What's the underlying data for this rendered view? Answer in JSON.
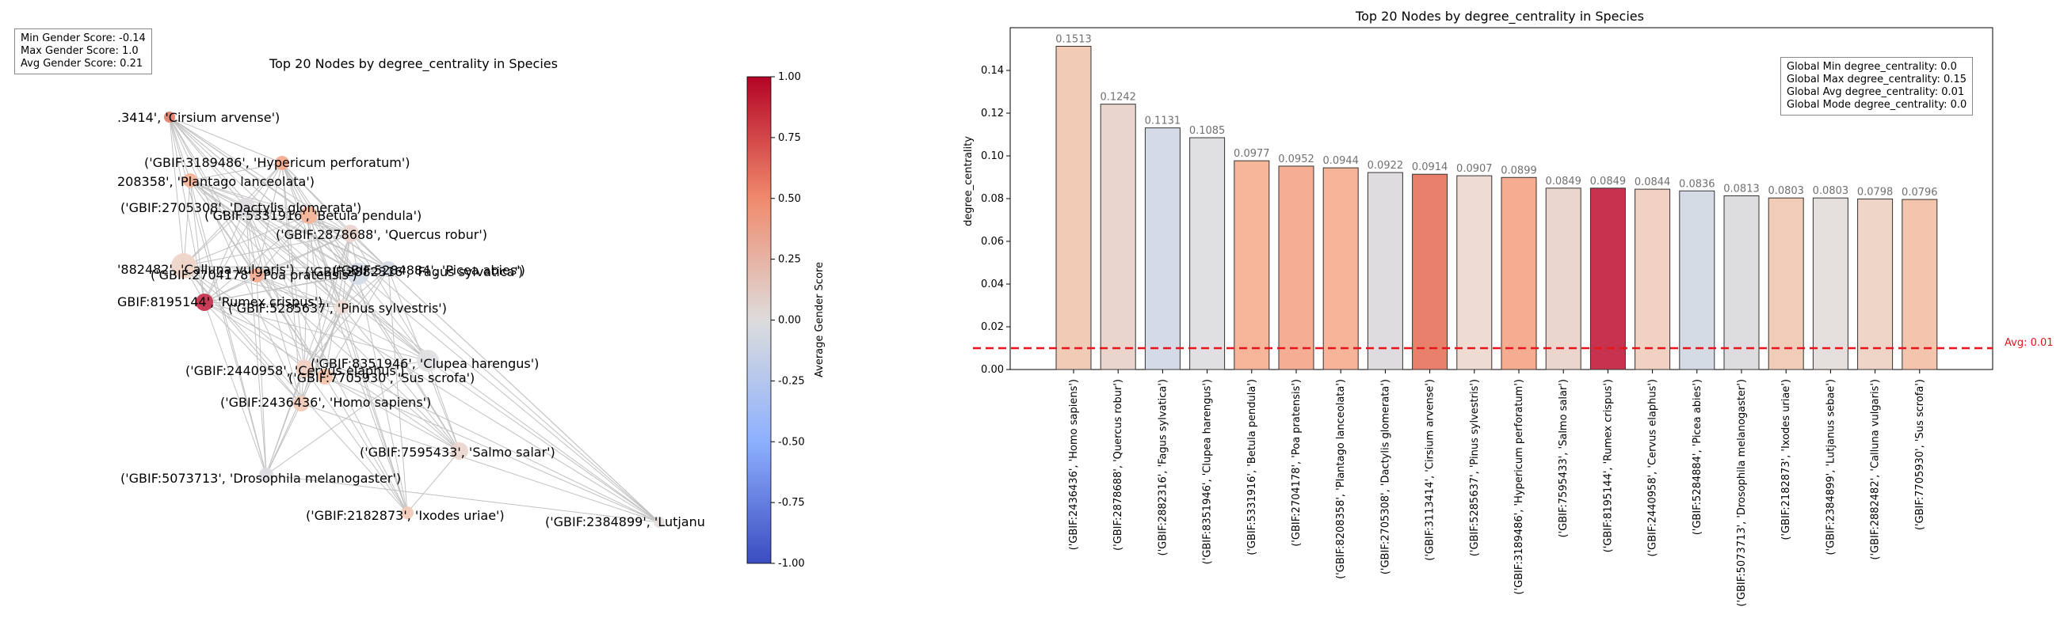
{
  "network": {
    "title": "Top 20 Nodes by degree_centrality in Species",
    "stats": [
      "Min Gender Score: -0.14",
      "Max Gender Score: 1.0",
      "Avg Gender Score: 0.21"
    ],
    "colorbar": {
      "label": "Average Gender Score",
      "ticks": [
        "1.00",
        "0.75",
        "0.50",
        "0.25",
        "0.00",
        "-0.25",
        "-0.50",
        "-0.75",
        "-1.00"
      ]
    },
    "node_labels": [
      ".3414', 'Cirsium arvense')",
      "('GBIF:3189486', 'Hypericum perforatum')",
      "208358', 'Plantago lanceolata')",
      "('GBIF:2705308', 'Dactylis glomerata')",
      "('GBIF:5331916', 'Betula pendula')",
      "('GBIF:2878688', 'Quercus robur')",
      "'882482', 'Calluna vulgaris')",
      "('GBIF:2704178', 'Poa pratensis')",
      "('GBIF:2882316', 'Fagus sylvatica')",
      "('GBIF:5284884', 'Picea abies')",
      "GBIF:8195144', 'Rumex crispus')",
      "('GBIF:5285637', 'Pinus sylvestris')",
      "('GBIF:8351946', 'Clupea harengus')",
      "('GBIF:2440958', 'Cervus elaphus')",
      "('GBIF:7705930', 'Sus scrofa')",
      "('GBIF:2436436', 'Homo sapiens')",
      "('GBIF:7595433', 'Salmo salar')",
      "('GBIF:5073713', 'Drosophila melanogaster')",
      "('GBIF:2182873', 'Ixodes uriae')",
      "('GBIF:2384899', 'Lutjanu"
    ]
  },
  "chart_data": {
    "type": "bar",
    "title": "Top 20 Nodes by degree_centrality in Species",
    "xlabel": "",
    "ylabel": "degree_centrality",
    "ylim": [
      0,
      0.16
    ],
    "yticks": [
      "0.00",
      "0.02",
      "0.04",
      "0.06",
      "0.08",
      "0.10",
      "0.12",
      "0.14"
    ],
    "categories": [
      "('GBIF:2436436', 'Homo sapiens')",
      "('GBIF:2878688', 'Quercus robur')",
      "('GBIF:2882316', 'Fagus sylvatica')",
      "('GBIF:8351946', 'Clupea harengus')",
      "('GBIF:5331916', 'Betula pendula')",
      "('GBIF:2704178', 'Poa pratensis')",
      "('GBIF:8208358', 'Plantago lanceolata')",
      "('GBIF:2705308', 'Dactylis glomerata')",
      "('GBIF:3113414', 'Cirsium arvense')",
      "('GBIF:5285637', 'Pinus sylvestris')",
      "('GBIF:3189486', 'Hypericum perforatum')",
      "('GBIF:7595433', 'Salmo salar')",
      "('GBIF:8195144', 'Rumex crispus')",
      "('GBIF:2440958', 'Cervus elaphus')",
      "('GBIF:5284884', 'Picea abies')",
      "('GBIF:5073713', 'Drosophila melanogaster')",
      "('GBIF:2182873', 'Ixodes uriae')",
      "('GBIF:2384899', 'Lutjanus sebae')",
      "('GBIF:2882482', 'Calluna vulgaris')",
      "('GBIF:7705930', 'Sus scrofa')"
    ],
    "values": [
      0.1513,
      0.1242,
      0.1131,
      0.1085,
      0.0977,
      0.0952,
      0.0944,
      0.0922,
      0.0914,
      0.0907,
      0.0899,
      0.0849,
      0.0849,
      0.0844,
      0.0836,
      0.0813,
      0.0803,
      0.0803,
      0.0798,
      0.0796
    ],
    "value_labels": [
      "0.1513",
      "0.1242",
      "0.1131",
      "0.1085",
      "0.0977",
      "0.0952",
      "0.0944",
      "0.0922",
      "0.0914",
      "0.0907",
      "0.0899",
      "0.0849",
      "0.0849",
      "0.0844",
      "0.0836",
      "0.0813",
      "0.0803",
      "0.0803",
      "0.0798",
      "0.0796"
    ],
    "bar_colors": [
      "#f2cbb7",
      "#ead5cc",
      "#d4dbe6",
      "#e0dfe2",
      "#f7b599",
      "#f5ae93",
      "#f7b498",
      "#dedcdf",
      "#e8806b",
      "#eedbd2",
      "#f5ac90",
      "#ead6cd",
      "#c7334f",
      "#f0d1c2",
      "#d5dbe5",
      "#dddcdf",
      "#f1ccb9",
      "#e5dfdd",
      "#efd5c8",
      "#f5c4ac"
    ],
    "average": 0.01,
    "average_label": "Avg: 0.01",
    "grid": false,
    "global_stats": [
      "Global Min degree_centrality: 0.0",
      "Global Max degree_centrality: 0.15",
      "Global Avg degree_centrality: 0.01",
      "Global Mode degree_centrality: 0.0"
    ]
  }
}
